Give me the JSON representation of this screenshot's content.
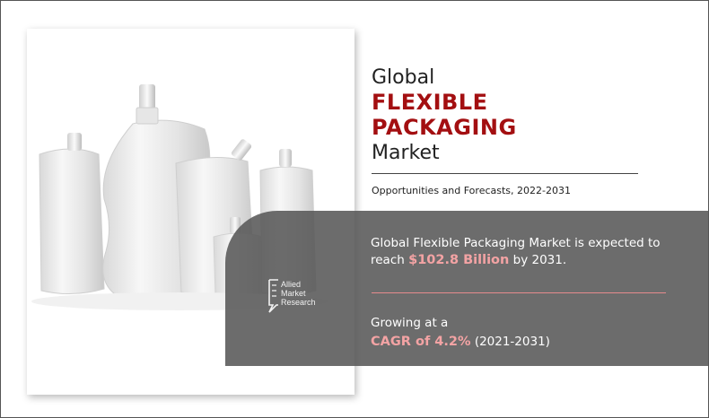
{
  "title": {
    "line1": "Global",
    "accent_line1": "FLEXIBLE",
    "accent_line2": "PACKAGING",
    "line2": "Market"
  },
  "subtitle": "Opportunities and Forecasts, 2022-2031",
  "forecast": {
    "text_a": "Global Flexible Packaging Market is expected to",
    "text_b": "reach",
    "value": "$102.8 Billion",
    "text_c": "by 2031."
  },
  "growth": {
    "text_a": "Growing at a",
    "cagr": "CAGR of 4.2%",
    "period": "(2021-2031)"
  },
  "logo": {
    "line1": "Allied",
    "line2": "Market",
    "line3": "Research"
  },
  "colors": {
    "accent": "#a30f11",
    "highlight": "#f3a3a4",
    "panel": "#585858"
  }
}
